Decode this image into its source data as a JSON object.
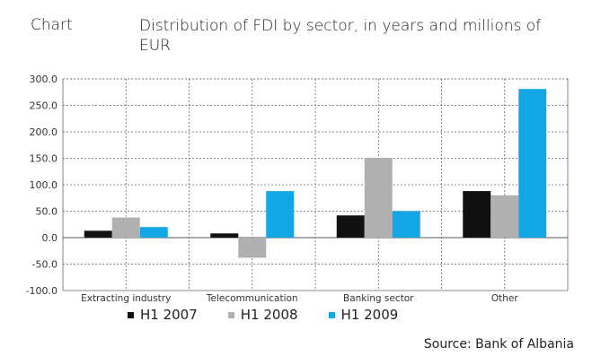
{
  "header": {
    "label": "Chart",
    "title": "Distribution of FDI by sector, in years and millions of EUR"
  },
  "source": "Source: Bank of Albania",
  "chart_data": {
    "type": "bar",
    "title": "Distribution of FDI by sector, in years and millions of EUR",
    "xlabel": "",
    "ylabel": "",
    "ylim": [
      -100,
      300
    ],
    "yticks": [
      "300.0",
      "250.0",
      "200.0",
      "150.0",
      "100.0",
      "50.0",
      "0.0",
      "-50.0",
      "-100.0"
    ],
    "ytick_values": [
      300,
      250,
      200,
      150,
      100,
      50,
      0,
      -50,
      -100
    ],
    "categories": [
      "Extracting industry",
      "Telecommunication",
      "Banking sector",
      "Other"
    ],
    "series": [
      {
        "name": "H1 2007",
        "color": "#111111",
        "values": [
          13,
          8,
          42,
          88
        ]
      },
      {
        "name": "H1 2008",
        "color": "#b0b0b0",
        "values": [
          38,
          -38,
          151,
          80
        ]
      },
      {
        "name": "H1 2009",
        "color": "#13a6e6",
        "values": [
          20,
          88,
          50,
          281
        ]
      }
    ],
    "grid": true,
    "legend_position": "bottom"
  }
}
